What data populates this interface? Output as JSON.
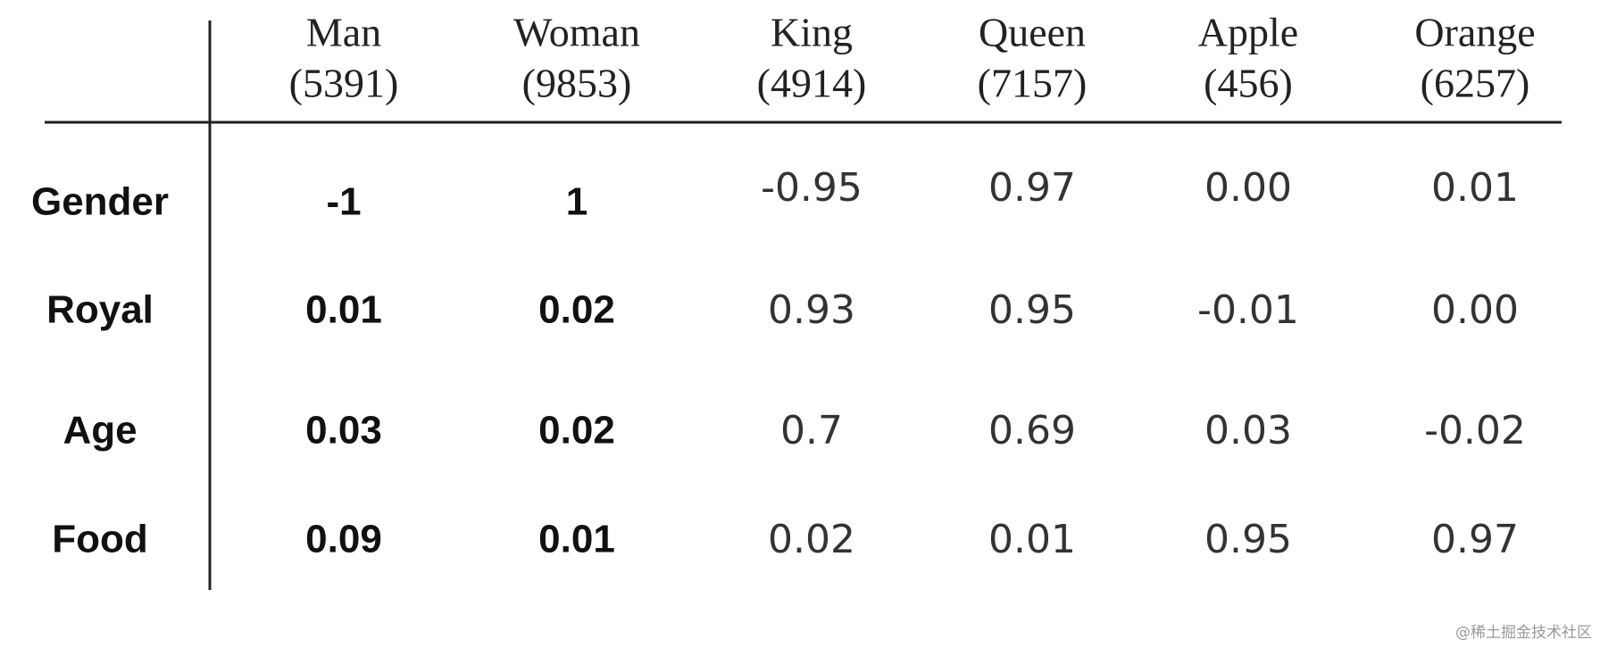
{
  "table": {
    "columns": [
      {
        "word": "Man",
        "index": "(5391)"
      },
      {
        "word": "Woman",
        "index": "(9853)"
      },
      {
        "word": "King",
        "index": "(4914)"
      },
      {
        "word": "Queen",
        "index": "(7157)"
      },
      {
        "word": "Apple",
        "index": "(456)"
      },
      {
        "word": "Orange",
        "index": "(6257)"
      }
    ],
    "rows": [
      {
        "label": "Gender",
        "values": [
          "-1",
          "1",
          "-0.95",
          "0.97",
          "0.00",
          "0.01"
        ]
      },
      {
        "label": "Royal",
        "values": [
          "0.01",
          "0.02",
          "0.93",
          "0.95",
          "-0.01",
          "0.00"
        ]
      },
      {
        "label": "Age",
        "values": [
          "0.03",
          "0.02",
          "0.7",
          "0.69",
          "0.03",
          "-0.02"
        ]
      },
      {
        "label": "Food",
        "values": [
          "0.09",
          "0.01",
          "0.02",
          "0.01",
          "0.95",
          "0.97"
        ]
      }
    ]
  },
  "watermark": "@稀土掘金技术社区"
}
